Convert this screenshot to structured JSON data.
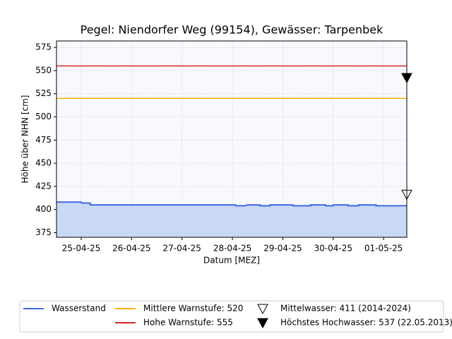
{
  "chart_data": {
    "type": "line",
    "title": "Pegel:  Niendorfer Weg (99154), Gewässer:  Tarpenbek",
    "xlabel": "Datum [MEZ]",
    "ylabel": "Höhe über NHN [cm]",
    "x": [
      -0.49,
      0.0,
      0.01,
      0.18,
      0.18,
      3.06,
      3.06,
      3.25,
      3.3,
      3.55,
      3.55,
      3.75,
      3.75,
      4.2,
      4.2,
      4.55,
      4.55,
      4.85,
      4.85,
      5.0,
      5.0,
      5.3,
      5.3,
      5.5,
      5.5,
      5.85,
      5.85,
      6.46
    ],
    "series": [
      {
        "name": "Wasserstand",
        "color": "#4169e1",
        "fill": "#c9d8f5",
        "values": [
          408,
          408,
          407,
          407,
          405,
          405,
          404,
          404,
          405,
          405,
          404,
          404,
          405,
          405,
          404,
          404,
          405,
          405,
          404,
          404,
          405,
          405,
          404,
          404,
          405,
          405,
          404,
          404
        ]
      }
    ],
    "reference_lines": [
      {
        "name": "Mittlere Warnstufe: 520",
        "value": 520,
        "color": "#ffb000"
      },
      {
        "name": "Hohe Warnstufe: 555",
        "value": 555,
        "color": "#d62728"
      }
    ],
    "markers": [
      {
        "name": "Mittelwasser: 411 (2014-2024)",
        "value": 411,
        "filled": false
      },
      {
        "name": "Höchstes Hochwasser: 537 (22.05.2013)",
        "value": 537,
        "filled": true
      }
    ],
    "xlim": [
      -0.49,
      6.46
    ],
    "ylim": [
      370,
      582
    ],
    "xticks": [
      {
        "value": 0,
        "label": "25-04-25"
      },
      {
        "value": 1,
        "label": "26-04-25"
      },
      {
        "value": 2,
        "label": "27-04-25"
      },
      {
        "value": 3,
        "label": "28-04-25"
      },
      {
        "value": 4,
        "label": "29-04-25"
      },
      {
        "value": 5,
        "label": "30-04-25"
      },
      {
        "value": 6,
        "label": "01-05-25"
      }
    ],
    "yticks": [
      375,
      400,
      425,
      450,
      475,
      500,
      525,
      550,
      575
    ],
    "grid": true,
    "legend": "bottom"
  }
}
